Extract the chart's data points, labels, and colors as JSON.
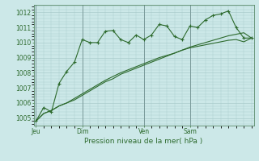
{
  "background_color": "#cce8e8",
  "grid_color": "#aacccc",
  "line_color": "#2d6a2d",
  "xlabel": "Pression niveau de la mer( hPa )",
  "ylim": [
    1004.5,
    1012.5
  ],
  "yticks": [
    1005,
    1006,
    1007,
    1008,
    1009,
    1010,
    1011,
    1012
  ],
  "x_tick_labels": [
    "Jeu",
    "Dim",
    "Ven",
    "Sam"
  ],
  "x_tick_positions": [
    0,
    6,
    14,
    20
  ],
  "vline_positions": [
    0,
    6,
    14,
    20
  ],
  "n_points": 29,
  "series1": [
    1004.8,
    1005.7,
    1005.4,
    1007.3,
    1008.1,
    1008.7,
    1010.2,
    1010.0,
    1010.0,
    1010.75,
    1010.8,
    1010.2,
    1010.0,
    1010.5,
    1010.2,
    1010.5,
    1011.2,
    1011.1,
    1010.4,
    1010.2,
    1011.1,
    1011.0,
    1011.5,
    1011.8,
    1011.9,
    1012.1,
    1011.0,
    1010.3,
    1010.3
  ],
  "series2": [
    1004.8,
    1005.3,
    1005.5,
    1005.8,
    1006.0,
    1006.2,
    1006.5,
    1006.8,
    1007.1,
    1007.4,
    1007.6,
    1007.9,
    1008.1,
    1008.3,
    1008.5,
    1008.7,
    1008.9,
    1009.1,
    1009.3,
    1009.5,
    1009.7,
    1009.85,
    1010.0,
    1010.15,
    1010.3,
    1010.45,
    1010.55,
    1010.65,
    1010.3
  ],
  "series3": [
    1004.8,
    1005.3,
    1005.5,
    1005.8,
    1006.0,
    1006.3,
    1006.6,
    1006.9,
    1007.2,
    1007.5,
    1007.75,
    1008.0,
    1008.2,
    1008.4,
    1008.6,
    1008.8,
    1009.0,
    1009.15,
    1009.3,
    1009.5,
    1009.65,
    1009.75,
    1009.85,
    1009.95,
    1010.05,
    1010.15,
    1010.2,
    1010.05,
    1010.3
  ]
}
